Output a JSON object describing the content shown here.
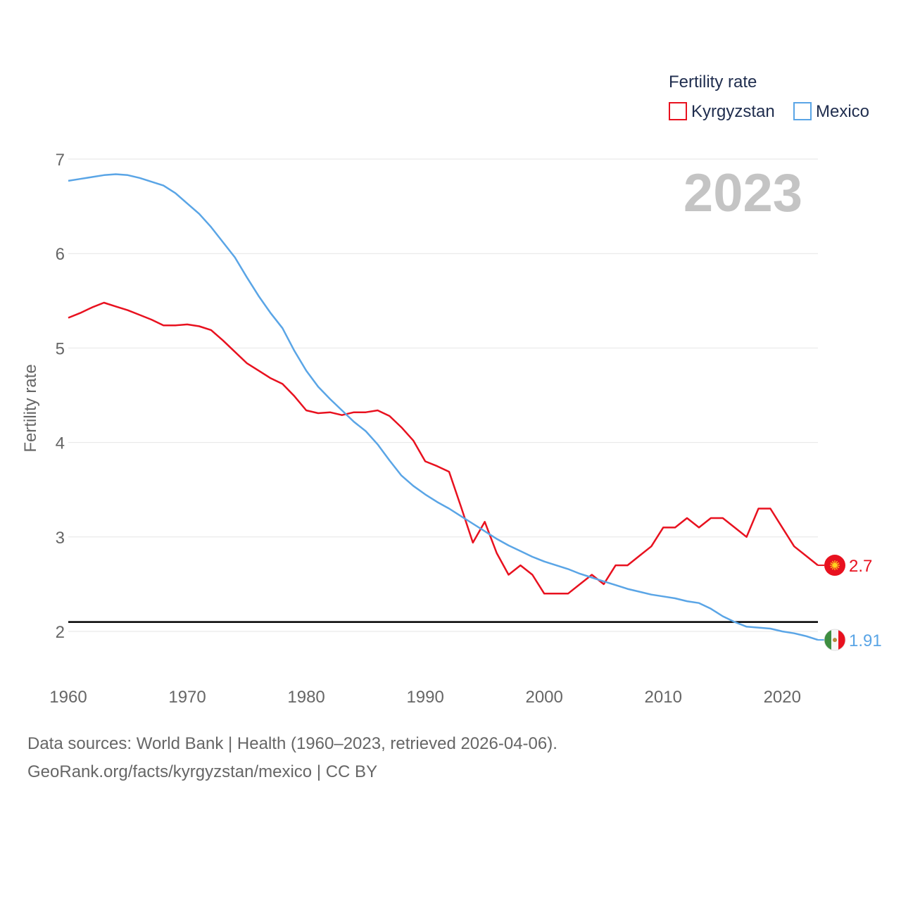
{
  "chart_data": {
    "type": "line",
    "title": "",
    "year_label": "2023",
    "ylabel": "Fertility rate",
    "xlabel": "",
    "xlim": [
      1960,
      2023
    ],
    "ylim": [
      1.5,
      7
    ],
    "x_ticks": [
      1960,
      1970,
      1980,
      1990,
      2000,
      2010,
      2020
    ],
    "y_ticks": [
      2,
      3,
      4,
      5,
      6,
      7
    ],
    "grid": true,
    "legend": {
      "title": "Fertility rate",
      "placement": "top-right",
      "entries": [
        "Kyrgyzstan",
        "Mexico"
      ]
    },
    "reference_line": {
      "value": 2.1,
      "color": "#000000"
    },
    "x": [
      1960,
      1961,
      1962,
      1963,
      1964,
      1965,
      1966,
      1967,
      1968,
      1969,
      1970,
      1971,
      1972,
      1973,
      1974,
      1975,
      1976,
      1977,
      1978,
      1979,
      1980,
      1981,
      1982,
      1983,
      1984,
      1985,
      1986,
      1987,
      1988,
      1989,
      1990,
      1991,
      1992,
      1993,
      1994,
      1995,
      1996,
      1997,
      1998,
      1999,
      2000,
      2001,
      2002,
      2003,
      2004,
      2005,
      2006,
      2007,
      2008,
      2009,
      2010,
      2011,
      2012,
      2013,
      2014,
      2015,
      2016,
      2017,
      2018,
      2019,
      2020,
      2021,
      2022,
      2023
    ],
    "series": [
      {
        "name": "Kyrgyzstan",
        "color": "#e8111f",
        "end_value_label": "2.7",
        "values": [
          5.32,
          5.37,
          5.43,
          5.48,
          5.44,
          5.4,
          5.35,
          5.3,
          5.24,
          5.24,
          5.25,
          5.23,
          5.19,
          5.08,
          4.96,
          4.84,
          4.76,
          4.68,
          4.62,
          4.49,
          4.34,
          4.31,
          4.32,
          4.29,
          4.32,
          4.32,
          4.34,
          4.28,
          4.16,
          4.02,
          3.8,
          3.75,
          3.69,
          3.32,
          2.94,
          3.16,
          2.83,
          2.6,
          2.7,
          2.6,
          2.4,
          2.4,
          2.4,
          2.5,
          2.6,
          2.5,
          2.7,
          2.7,
          2.8,
          2.9,
          3.1,
          3.1,
          3.2,
          3.1,
          3.2,
          3.2,
          3.1,
          3.0,
          3.3,
          3.3,
          3.1,
          2.9,
          2.8,
          2.7
        ]
      },
      {
        "name": "Mexico",
        "color": "#5aa5e6",
        "end_value_label": "1.91",
        "values": [
          6.77,
          6.79,
          6.81,
          6.83,
          6.84,
          6.83,
          6.8,
          6.76,
          6.72,
          6.64,
          6.53,
          6.42,
          6.28,
          6.12,
          5.96,
          5.75,
          5.55,
          5.37,
          5.21,
          4.97,
          4.76,
          4.59,
          4.46,
          4.34,
          4.22,
          4.12,
          3.98,
          3.81,
          3.65,
          3.54,
          3.45,
          3.37,
          3.3,
          3.22,
          3.14,
          3.06,
          2.98,
          2.91,
          2.85,
          2.79,
          2.74,
          2.7,
          2.66,
          2.61,
          2.57,
          2.53,
          2.49,
          2.45,
          2.42,
          2.39,
          2.37,
          2.35,
          2.32,
          2.3,
          2.24,
          2.16,
          2.1,
          2.05,
          2.04,
          2.03,
          2.0,
          1.98,
          1.95,
          1.91
        ]
      }
    ],
    "flags": [
      "kyrgyzstan-flag",
      "mexico-flag"
    ]
  },
  "source": {
    "line1": "Data sources: World Bank | Health (1960–2023, retrieved 2026-04-06).",
    "line2": "GeoRank.org/facts/kyrgyzstan/mexico | CC BY"
  }
}
